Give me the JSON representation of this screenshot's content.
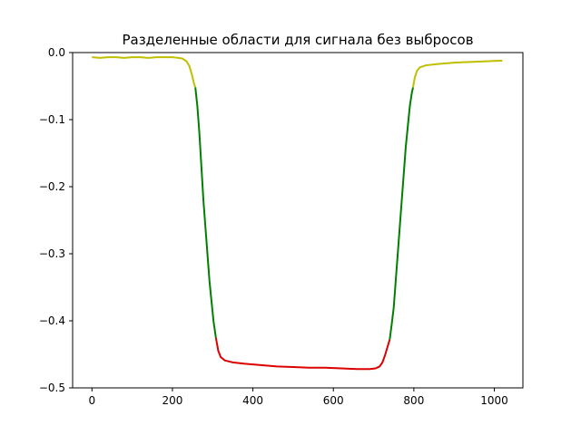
{
  "chart_data": {
    "type": "line",
    "title": "Разделенные области для сигнала без выбросов",
    "xlabel": "",
    "ylabel": "",
    "xlim": [
      -48,
      1071
    ],
    "ylim": [
      -0.5,
      0.0
    ],
    "x_ticks": [
      0,
      200,
      400,
      600,
      800,
      1000
    ],
    "x_tick_labels": [
      "0",
      "200",
      "400",
      "600",
      "800",
      "1000"
    ],
    "y_ticks": [
      0.0,
      -0.1,
      -0.2,
      -0.3,
      -0.4,
      -0.5
    ],
    "y_tick_labels": [
      "0.0",
      "−0.1",
      "−0.2",
      "−0.3",
      "−0.4",
      "−0.5"
    ],
    "grid": false,
    "legend": "none",
    "series": [
      {
        "color": "#bfbf00",
        "points": [
          [
            0,
            -0.007
          ],
          [
            20,
            -0.008
          ],
          [
            40,
            -0.007
          ],
          [
            60,
            -0.007
          ],
          [
            80,
            -0.008
          ],
          [
            100,
            -0.007
          ],
          [
            120,
            -0.007
          ],
          [
            140,
            -0.008
          ],
          [
            160,
            -0.007
          ],
          [
            180,
            -0.007
          ],
          [
            200,
            -0.007
          ],
          [
            215,
            -0.008
          ],
          [
            225,
            -0.009
          ],
          [
            235,
            -0.013
          ],
          [
            242,
            -0.02
          ],
          [
            248,
            -0.032
          ],
          [
            254,
            -0.047
          ],
          [
            257,
            -0.052
          ]
        ]
      },
      {
        "color": "#008000",
        "points": [
          [
            257,
            -0.052
          ],
          [
            262,
            -0.08
          ],
          [
            267,
            -0.12
          ],
          [
            272,
            -0.17
          ],
          [
            277,
            -0.22
          ],
          [
            282,
            -0.26
          ],
          [
            287,
            -0.3
          ],
          [
            292,
            -0.34
          ],
          [
            297,
            -0.37
          ],
          [
            302,
            -0.4
          ],
          [
            308,
            -0.425
          ]
        ]
      },
      {
        "color": "#dd0000",
        "points": [
          [
            308,
            -0.425
          ],
          [
            314,
            -0.445
          ],
          [
            320,
            -0.454
          ],
          [
            330,
            -0.459
          ],
          [
            350,
            -0.462
          ],
          [
            380,
            -0.464
          ],
          [
            420,
            -0.466
          ],
          [
            460,
            -0.468
          ],
          [
            500,
            -0.469
          ],
          [
            540,
            -0.47
          ],
          [
            580,
            -0.47
          ],
          [
            620,
            -0.471
          ],
          [
            660,
            -0.472
          ],
          [
            690,
            -0.472
          ],
          [
            705,
            -0.471
          ],
          [
            715,
            -0.468
          ],
          [
            722,
            -0.462
          ],
          [
            728,
            -0.452
          ],
          [
            734,
            -0.44
          ],
          [
            740,
            -0.428
          ]
        ]
      },
      {
        "color": "#008000",
        "points": [
          [
            740,
            -0.428
          ],
          [
            745,
            -0.405
          ],
          [
            750,
            -0.38
          ],
          [
            755,
            -0.34
          ],
          [
            760,
            -0.3
          ],
          [
            765,
            -0.26
          ],
          [
            770,
            -0.22
          ],
          [
            775,
            -0.18
          ],
          [
            780,
            -0.14
          ],
          [
            785,
            -0.11
          ],
          [
            790,
            -0.08
          ],
          [
            795,
            -0.06
          ],
          [
            798,
            -0.052
          ]
        ]
      },
      {
        "color": "#bfbf00",
        "points": [
          [
            798,
            -0.052
          ],
          [
            802,
            -0.038
          ],
          [
            808,
            -0.027
          ],
          [
            815,
            -0.022
          ],
          [
            830,
            -0.019
          ],
          [
            860,
            -0.017
          ],
          [
            900,
            -0.015
          ],
          [
            940,
            -0.014
          ],
          [
            980,
            -0.013
          ],
          [
            1020,
            -0.012
          ]
        ]
      }
    ]
  }
}
